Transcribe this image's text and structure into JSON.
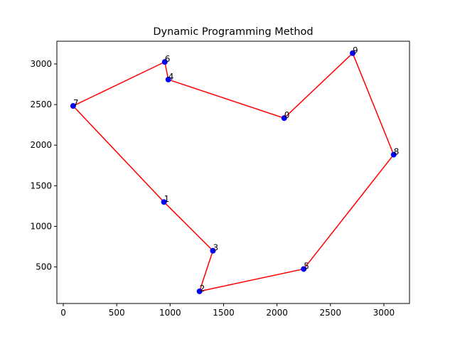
{
  "chart_data": {
    "type": "scatter",
    "title": "Dynamic Programming Method",
    "xlabel": "",
    "ylabel": "",
    "xlim": [
      -60,
      3240
    ],
    "ylim": [
      50,
      3280
    ],
    "xticks": [
      0,
      500,
      1000,
      1500,
      2000,
      2500,
      3000
    ],
    "yticks": [
      500,
      1000,
      1500,
      2000,
      2500,
      3000
    ],
    "grid": false,
    "point_color": "#0000ff",
    "line_color": "#ff0000",
    "points": [
      {
        "label": "0",
        "x": 2067,
        "y": 2333
      },
      {
        "label": "1",
        "x": 942,
        "y": 1300
      },
      {
        "label": "2",
        "x": 1275,
        "y": 200
      },
      {
        "label": "3",
        "x": 1400,
        "y": 700
      },
      {
        "label": "4",
        "x": 983,
        "y": 2808
      },
      {
        "label": "5",
        "x": 2250,
        "y": 475
      },
      {
        "label": "6",
        "x": 950,
        "y": 3025
      },
      {
        "label": "7",
        "x": 92,
        "y": 2483
      },
      {
        "label": "8",
        "x": 3092,
        "y": 1883
      },
      {
        "label": "9",
        "x": 2708,
        "y": 3133
      }
    ],
    "route": [
      0,
      4,
      6,
      7,
      1,
      3,
      2,
      5,
      8,
      9,
      0
    ]
  }
}
